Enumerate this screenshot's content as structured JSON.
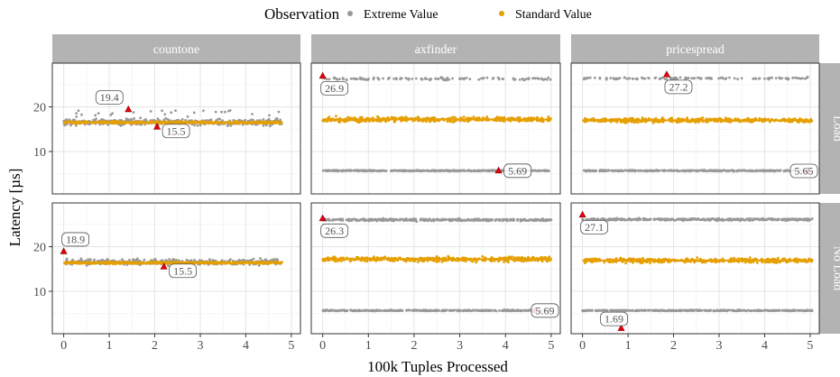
{
  "chart_data": {
    "type": "scatter",
    "legend_title": "Observation",
    "legend_position": "top",
    "xlabel": "100k Tuples Processed",
    "ylabel": "Latency [µs]",
    "xlim": [
      -0.25,
      5.2
    ],
    "ylim": [
      0.5,
      29.8
    ],
    "x_ticks": [
      0,
      1,
      2,
      3,
      4,
      5
    ],
    "y_ticks": [
      10,
      20
    ],
    "grid": true,
    "colors": {
      "extreme": "#999999",
      "standard": "#E69F00",
      "marker": "#e8000b",
      "strip": "#b3b3b3",
      "grid": "#e5e5e5"
    },
    "series": [
      {
        "key": "extreme",
        "name": "Extreme Value"
      },
      {
        "key": "standard",
        "name": "Standard Value"
      }
    ],
    "columns": [
      "countone",
      "axfinder",
      "pricespread"
    ],
    "rows": [
      "Load",
      "No Load"
    ],
    "panels": [
      {
        "column": "countone",
        "row": "Load",
        "x_end": 4.8,
        "bands": [
          {
            "series": "extreme",
            "center": 16.6,
            "spread": 1.2,
            "extra_high": 19.2
          },
          {
            "series": "standard",
            "center": 16.5,
            "spread": 0.4
          }
        ],
        "markers": [
          {
            "x": 1.42,
            "y": 19.4,
            "label": "19.4"
          },
          {
            "x": 2.05,
            "y": 15.5,
            "label": "15.5"
          }
        ]
      },
      {
        "column": "axfinder",
        "row": "Load",
        "x_end": 5.0,
        "bands": [
          {
            "series": "extreme",
            "center": 26.3,
            "spread": 0.5,
            "sparse": true
          },
          {
            "series": "standard",
            "center": 17.2,
            "spread": 0.9
          },
          {
            "series": "extreme",
            "center": 5.7,
            "spread": 0.2
          }
        ],
        "markers": [
          {
            "x": 0.0,
            "y": 26.9,
            "label": "26.9"
          },
          {
            "x": 3.85,
            "y": 5.69,
            "label": "5.69"
          }
        ]
      },
      {
        "column": "pricespread",
        "row": "Load",
        "x_end": 5.05,
        "bands": [
          {
            "series": "extreme",
            "center": 26.4,
            "spread": 0.4,
            "sparse": true
          },
          {
            "series": "standard",
            "center": 17.0,
            "spread": 0.8
          },
          {
            "series": "extreme",
            "center": 5.7,
            "spread": 0.2
          }
        ],
        "markers": [
          {
            "x": 1.85,
            "y": 27.2,
            "label": "27.2"
          },
          {
            "x": 4.95,
            "y": 5.65,
            "label": "5.65"
          }
        ]
      },
      {
        "column": "countone",
        "row": "No Load",
        "x_end": 4.8,
        "bands": [
          {
            "series": "extreme",
            "center": 16.6,
            "spread": 1.1
          },
          {
            "series": "standard",
            "center": 16.4,
            "spread": 0.4
          }
        ],
        "markers": [
          {
            "x": 0.0,
            "y": 18.9,
            "label": "18.9"
          },
          {
            "x": 2.2,
            "y": 15.5,
            "label": "15.5"
          }
        ]
      },
      {
        "column": "axfinder",
        "row": "No Load",
        "x_end": 5.0,
        "bands": [
          {
            "series": "extreme",
            "center": 26.0,
            "spread": 0.4
          },
          {
            "series": "standard",
            "center": 17.2,
            "spread": 0.9
          },
          {
            "series": "extreme",
            "center": 5.7,
            "spread": 0.2
          }
        ],
        "markers": [
          {
            "x": 0.0,
            "y": 26.3,
            "label": "26.3"
          },
          {
            "x": 4.65,
            "y": 5.69,
            "label": "5.69"
          }
        ]
      },
      {
        "column": "pricespread",
        "row": "No Load",
        "x_end": 5.05,
        "bands": [
          {
            "series": "extreme",
            "center": 26.1,
            "spread": 0.4
          },
          {
            "series": "standard",
            "center": 16.9,
            "spread": 0.8
          },
          {
            "series": "extreme",
            "center": 5.7,
            "spread": 0.2
          }
        ],
        "markers": [
          {
            "x": 0.0,
            "y": 27.1,
            "label": "27.1"
          },
          {
            "x": 0.85,
            "y": 1.69,
            "label": "1.69"
          }
        ]
      }
    ]
  }
}
